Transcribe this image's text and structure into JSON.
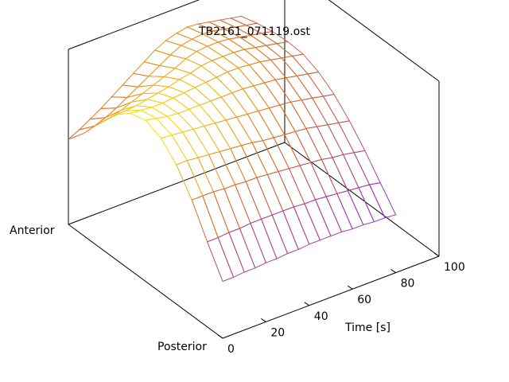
{
  "chart_data": {
    "type": "surface",
    "title": "TB2161_071119.ost",
    "xlabel": "Time [s]",
    "ylabel_near": "Posterior",
    "ylabel_far": "Anterior",
    "xlim": [
      0,
      100
    ],
    "x_ticks": [
      "0",
      "20",
      "40",
      "60",
      "80",
      "100"
    ],
    "grid": false,
    "colormap": [
      "#8a2be2",
      "#c25a5a",
      "#e07a20",
      "#f0c020",
      "#ffe800"
    ],
    "time_samples": [
      0,
      5,
      10,
      15,
      20,
      25,
      30,
      35,
      40,
      45,
      50,
      55,
      60,
      65,
      70,
      75,
      80
    ],
    "position_samples": [
      0,
      0.1,
      0.2,
      0.3,
      0.4,
      0.5,
      0.6,
      0.7,
      0.8,
      0.9,
      1.0
    ],
    "relative_height": [
      [
        0.04,
        0.3,
        0.58,
        0.8,
        0.94,
        1.0,
        0.96,
        0.84,
        0.66,
        0.46,
        0.3
      ],
      [
        0.04,
        0.3,
        0.58,
        0.8,
        0.93,
        0.98,
        0.95,
        0.84,
        0.67,
        0.49,
        0.35
      ],
      [
        0.05,
        0.31,
        0.58,
        0.79,
        0.92,
        0.96,
        0.94,
        0.85,
        0.7,
        0.53,
        0.41
      ],
      [
        0.05,
        0.31,
        0.57,
        0.78,
        0.91,
        0.95,
        0.94,
        0.87,
        0.74,
        0.58,
        0.47
      ],
      [
        0.06,
        0.32,
        0.57,
        0.77,
        0.9,
        0.95,
        0.95,
        0.89,
        0.78,
        0.64,
        0.54
      ],
      [
        0.06,
        0.32,
        0.56,
        0.76,
        0.89,
        0.95,
        0.96,
        0.91,
        0.82,
        0.7,
        0.61
      ],
      [
        0.07,
        0.32,
        0.56,
        0.75,
        0.88,
        0.95,
        0.97,
        0.94,
        0.86,
        0.76,
        0.68
      ],
      [
        0.07,
        0.32,
        0.55,
        0.74,
        0.87,
        0.95,
        0.98,
        0.96,
        0.9,
        0.82,
        0.75
      ],
      [
        0.08,
        0.32,
        0.54,
        0.72,
        0.86,
        0.95,
        0.99,
        0.99,
        0.95,
        0.88,
        0.82
      ],
      [
        0.08,
        0.31,
        0.53,
        0.71,
        0.85,
        0.95,
        1.0,
        1.0,
        0.98,
        0.93,
        0.87
      ],
      [
        0.08,
        0.31,
        0.52,
        0.7,
        0.84,
        0.94,
        1.0,
        1.0,
        0.99,
        0.95,
        0.9
      ],
      [
        0.08,
        0.3,
        0.51,
        0.69,
        0.83,
        0.93,
        0.99,
        1.0,
        0.99,
        0.96,
        0.92
      ],
      [
        0.07,
        0.29,
        0.5,
        0.68,
        0.82,
        0.92,
        0.98,
        0.99,
        0.98,
        0.95,
        0.91
      ],
      [
        0.07,
        0.28,
        0.48,
        0.66,
        0.8,
        0.9,
        0.96,
        0.97,
        0.96,
        0.93,
        0.89
      ],
      [
        0.06,
        0.27,
        0.47,
        0.64,
        0.78,
        0.88,
        0.94,
        0.95,
        0.94,
        0.91,
        0.87
      ],
      [
        0.06,
        0.26,
        0.45,
        0.62,
        0.76,
        0.86,
        0.92,
        0.93,
        0.92,
        0.89,
        0.85
      ],
      [
        0.05,
        0.24,
        0.43,
        0.6,
        0.74,
        0.84,
        0.9,
        0.91,
        0.9,
        0.87,
        0.83
      ]
    ]
  }
}
